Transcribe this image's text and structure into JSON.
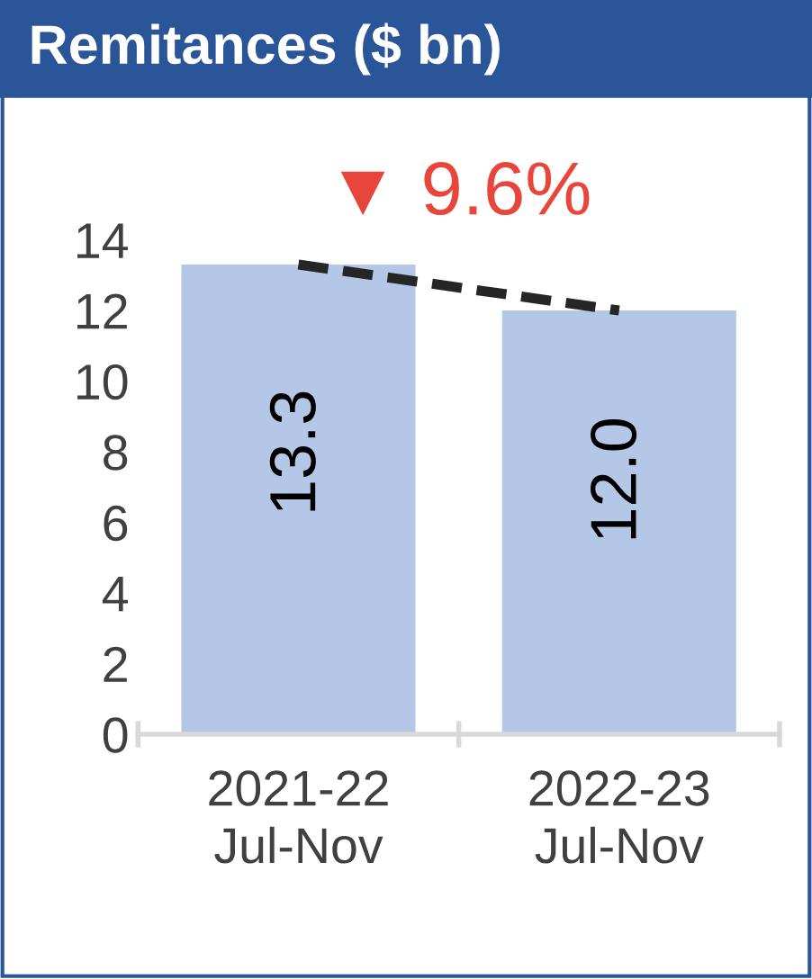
{
  "chart_data": {
    "type": "bar",
    "title": "Remitances ($ bn)",
    "categories": [
      "2021-22\nJul-Nov",
      "2022-23\nJul-Nov"
    ],
    "series": [
      {
        "color": "#b4c7e7",
        "values": [
          13.3,
          12.0
        ],
        "value_labels": [
          "13.3",
          "12.0"
        ]
      },
      {
        "type": "line",
        "color": "#262626",
        "values": [
          13.3,
          12.0
        ],
        "line_style": "dashed"
      }
    ],
    "annotations": [
      "▼ 9.6%"
    ],
    "ylim": [
      0,
      14
    ],
    "yticks": [
      0,
      2,
      4,
      6,
      8,
      10,
      12,
      14
    ],
    "grid": false,
    "legend": false
  }
}
